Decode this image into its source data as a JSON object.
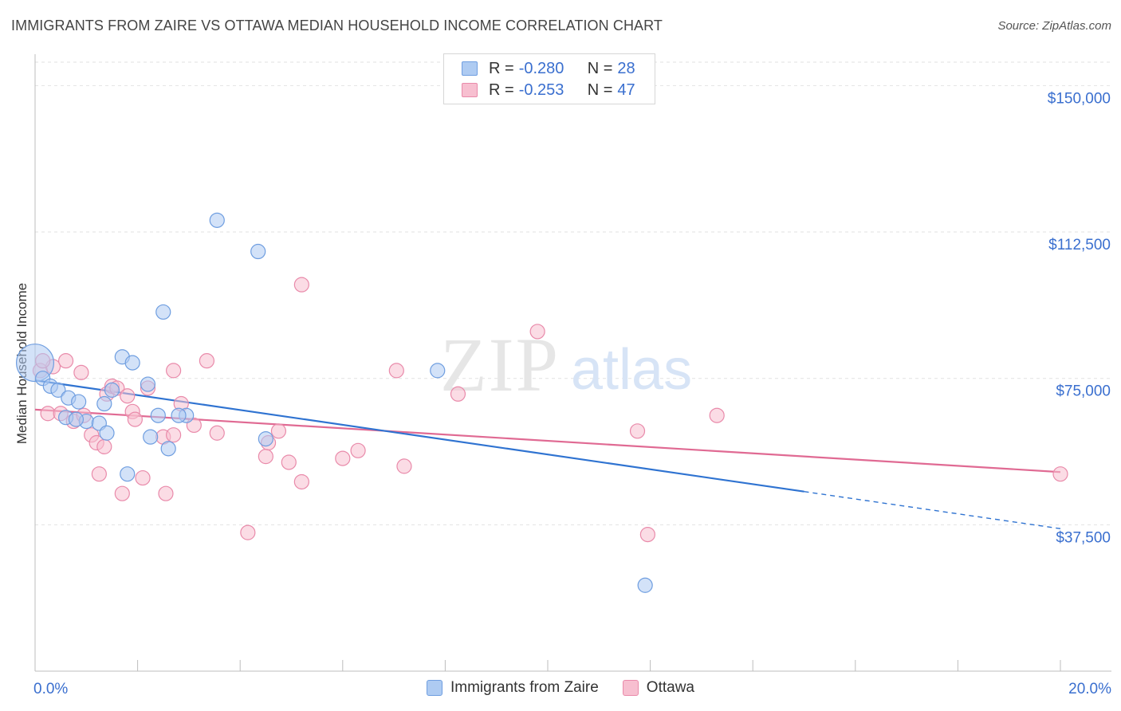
{
  "title": "IMMIGRANTS FROM ZAIRE VS OTTAWA MEDIAN HOUSEHOLD INCOME CORRELATION CHART",
  "source": "Source: ZipAtlas.com",
  "watermark": {
    "zip": "ZIP",
    "atlas": "atlas"
  },
  "legend_top": [
    {
      "r_label": "R =",
      "r_value": "-0.280",
      "n_label": "N =",
      "n_value": "28"
    },
    {
      "r_label": "R =",
      "r_value": "-0.253",
      "n_label": "N =",
      "n_value": "47"
    }
  ],
  "legend_bottom": [
    {
      "label": "Immigrants from Zaire"
    },
    {
      "label": "Ottawa"
    }
  ],
  "colors": {
    "blue_fill": "#aecbf2",
    "blue_stroke": "#6f9ee0",
    "blue_line": "#2f73d1",
    "pink_fill": "#f7bfd0",
    "pink_stroke": "#e98aaa",
    "pink_line": "#e06a93",
    "axis_text": "#3a6fcf"
  },
  "chart_data": {
    "type": "scatter",
    "title": "IMMIGRANTS FROM ZAIRE VS OTTAWA MEDIAN HOUSEHOLD INCOME CORRELATION CHART",
    "xlabel": "",
    "ylabel": "Median Household Income",
    "xlim": [
      0,
      20
    ],
    "ylim": [
      0,
      156000
    ],
    "x_tick_labels": [
      {
        "value": 0,
        "label": "0.0%"
      },
      {
        "value": 20,
        "label": "20.0%"
      }
    ],
    "y_tick_labels": [
      {
        "value": 37500,
        "label": "$37,500"
      },
      {
        "value": 75000,
        "label": "$75,000"
      },
      {
        "value": 112500,
        "label": "$112,500"
      },
      {
        "value": 150000,
        "label": "$150,000"
      }
    ],
    "series": [
      {
        "name": "Immigrants from Zaire",
        "color": "blue",
        "r": -0.28,
        "n": 28,
        "points": [
          [
            0.0,
            79000,
            2.6
          ],
          [
            0.15,
            75000,
            1
          ],
          [
            0.3,
            73000,
            1
          ],
          [
            0.45,
            72000,
            1
          ],
          [
            0.65,
            70000,
            1
          ],
          [
            0.85,
            69000,
            1
          ],
          [
            0.6,
            65000,
            1
          ],
          [
            1.0,
            64000,
            1
          ],
          [
            1.25,
            63500,
            1
          ],
          [
            1.4,
            61000,
            1
          ],
          [
            1.35,
            68500,
            1
          ],
          [
            1.5,
            72000,
            1
          ],
          [
            1.7,
            80500,
            1
          ],
          [
            1.9,
            79000,
            1
          ],
          [
            2.2,
            73500,
            1
          ],
          [
            2.4,
            65500,
            1
          ],
          [
            2.25,
            60000,
            1
          ],
          [
            2.6,
            57000,
            1
          ],
          [
            2.5,
            92000,
            1
          ],
          [
            2.95,
            65500,
            1
          ],
          [
            1.8,
            50500,
            1
          ],
          [
            3.55,
            115500,
            1
          ],
          [
            4.35,
            107500,
            1
          ],
          [
            4.5,
            59500,
            1
          ],
          [
            7.85,
            77000,
            1
          ],
          [
            11.9,
            22000,
            1
          ],
          [
            2.8,
            65500,
            1
          ],
          [
            0.8,
            64500,
            1
          ]
        ],
        "trend": {
          "x0": 0,
          "y0": 74500,
          "x1": 15,
          "y1": 46000,
          "dashed_to_x": 20,
          "dashed_to_y": 36500
        }
      },
      {
        "name": "Ottawa",
        "color": "pink",
        "points": [
          [
            0.1,
            77000,
            1
          ],
          [
            0.35,
            78000,
            1
          ],
          [
            0.6,
            79500,
            1
          ],
          [
            0.25,
            66000,
            1
          ],
          [
            0.5,
            66000,
            1
          ],
          [
            0.75,
            64000,
            1
          ],
          [
            0.9,
            76500,
            1
          ],
          [
            0.95,
            65500,
            1
          ],
          [
            1.1,
            60500,
            1
          ],
          [
            1.2,
            58500,
            1
          ],
          [
            1.4,
            71000,
            1
          ],
          [
            1.5,
            73000,
            1
          ],
          [
            1.6,
            72500,
            1
          ],
          [
            1.8,
            70500,
            1
          ],
          [
            1.9,
            66500,
            1
          ],
          [
            1.95,
            64500,
            1
          ],
          [
            2.1,
            49500,
            1
          ],
          [
            1.25,
            50500,
            1
          ],
          [
            1.7,
            45500,
            1
          ],
          [
            2.55,
            45500,
            1
          ],
          [
            2.5,
            60000,
            1
          ],
          [
            2.7,
            77000,
            1
          ],
          [
            2.85,
            68500,
            1
          ],
          [
            2.2,
            72500,
            1
          ],
          [
            3.1,
            63000,
            1
          ],
          [
            3.35,
            79500,
            1
          ],
          [
            3.55,
            61000,
            1
          ],
          [
            4.15,
            35500,
            1
          ],
          [
            4.5,
            55000,
            1
          ],
          [
            4.75,
            61500,
            1
          ],
          [
            4.95,
            53500,
            1
          ],
          [
            5.2,
            99000,
            1
          ],
          [
            5.2,
            48500,
            1
          ],
          [
            6.0,
            54500,
            1
          ],
          [
            6.3,
            56500,
            1
          ],
          [
            7.05,
            77000,
            1
          ],
          [
            7.2,
            52500,
            1
          ],
          [
            8.25,
            71000,
            1
          ],
          [
            9.8,
            87000,
            1
          ],
          [
            11.75,
            61500,
            1
          ],
          [
            11.95,
            35000,
            1
          ],
          [
            13.3,
            65500,
            1
          ],
          [
            20.0,
            50500,
            1
          ],
          [
            2.7,
            60500,
            1
          ],
          [
            4.55,
            58500,
            1
          ],
          [
            1.35,
            57500,
            1
          ],
          [
            0.15,
            79500,
            1
          ]
        ],
        "trend": {
          "x0": 0,
          "y0": 67000,
          "x1": 20,
          "y1": 51000
        }
      }
    ]
  }
}
